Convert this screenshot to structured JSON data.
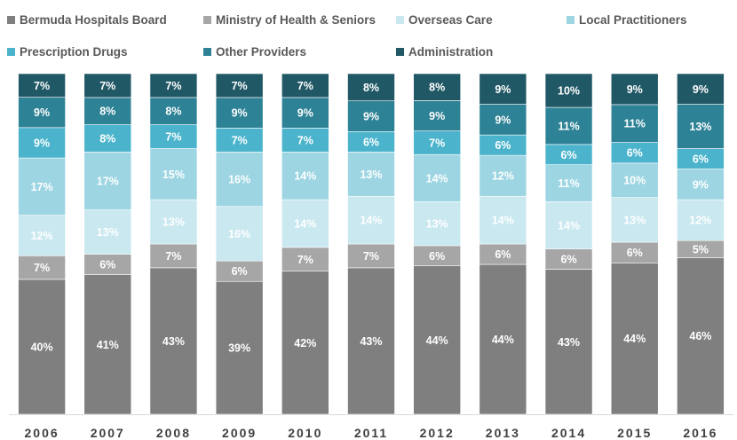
{
  "chart_data": {
    "type": "bar",
    "stacked": true,
    "percent_stacked": true,
    "categories": [
      "2006",
      "2007",
      "2008",
      "2009",
      "2010",
      "2011",
      "2012",
      "2013",
      "2014",
      "2015",
      "2016"
    ],
    "series": [
      {
        "name": "Bermuda Hospitals Board",
        "color": "#7f7f7f",
        "label_color": "#ffffff",
        "values": [
          40,
          41,
          43,
          39,
          42,
          43,
          44,
          44,
          43,
          44,
          46
        ]
      },
      {
        "name": "Ministry of Health & Seniors",
        "color": "#a6a6a6",
        "label_color": "#ffffff",
        "values": [
          7,
          6,
          7,
          6,
          7,
          7,
          6,
          6,
          6,
          6,
          5
        ]
      },
      {
        "name": "Overseas Care",
        "color": "#c9e8f0",
        "label_color": "#ffffff",
        "values": [
          12,
          13,
          13,
          16,
          14,
          14,
          13,
          14,
          14,
          13,
          12
        ]
      },
      {
        "name": "Local Practitioners",
        "color": "#9dd5e3",
        "label_color": "#ffffff",
        "values": [
          17,
          17,
          15,
          16,
          14,
          13,
          14,
          12,
          11,
          10,
          9
        ]
      },
      {
        "name": "Prescription Drugs",
        "color": "#4bb4cc",
        "label_color": "#ffffff",
        "values": [
          9,
          8,
          7,
          7,
          7,
          6,
          7,
          6,
          6,
          6,
          6
        ]
      },
      {
        "name": "Other Providers",
        "color": "#2e8296",
        "label_color": "#ffffff",
        "values": [
          9,
          8,
          8,
          9,
          9,
          9,
          9,
          9,
          11,
          11,
          13
        ]
      },
      {
        "name": "Administration",
        "color": "#215866",
        "label_color": "#ffffff",
        "values": [
          7,
          7,
          7,
          7,
          7,
          8,
          8,
          9,
          10,
          9,
          9
        ]
      }
    ],
    "value_suffix": "%",
    "legend_position": "top",
    "grid": false,
    "title": "",
    "xlabel": "",
    "ylabel": ""
  }
}
